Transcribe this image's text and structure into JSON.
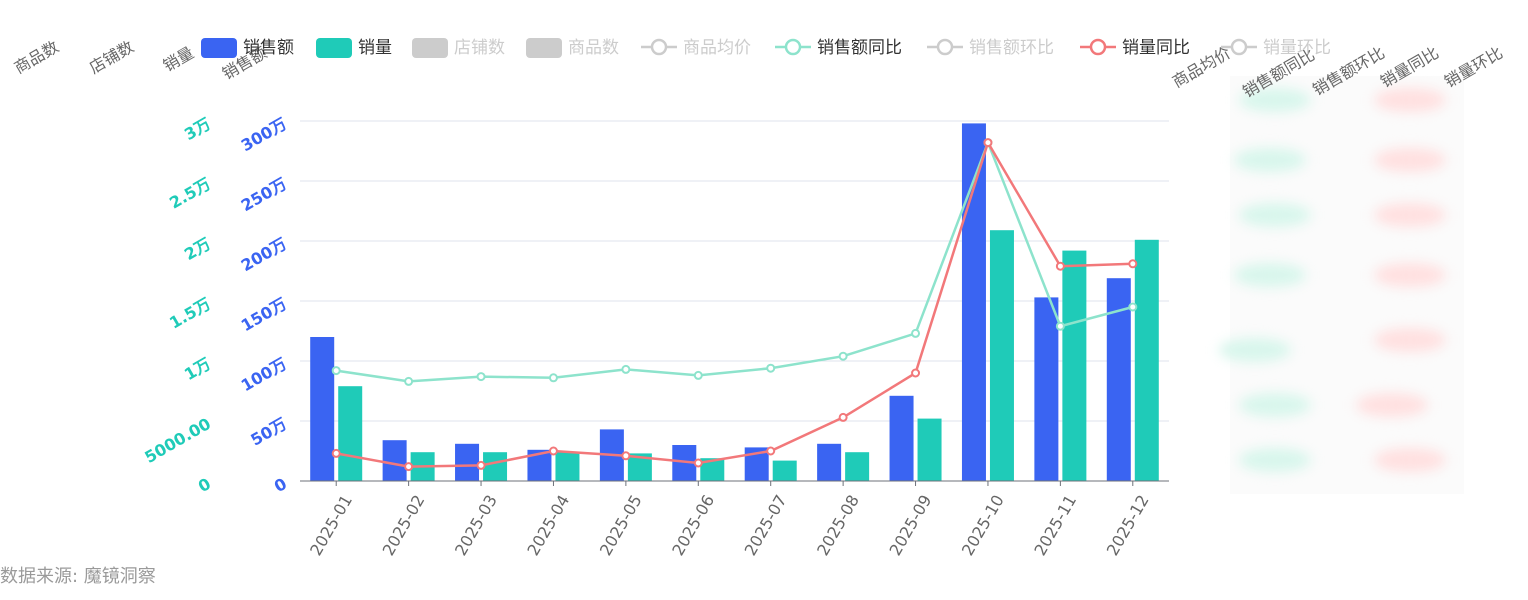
{
  "colors": {
    "sales": "#3a64f2",
    "volume": "#1fcbb8",
    "disabled": "#cccccc",
    "sales_yoy": "#8de3cc",
    "volume_yoy": "#f2787a",
    "grid": "#dfe3ec",
    "axis_left_outer": "#1fcbb8",
    "axis_left_inner": "#3a64f2",
    "tick_text": "#666666",
    "source_text": "#9a9a9a"
  },
  "legend": [
    {
      "label": "销售额",
      "kind": "bar",
      "color": "#3a64f2",
      "active": true
    },
    {
      "label": "销量",
      "kind": "bar",
      "color": "#1fcbb8",
      "active": true
    },
    {
      "label": "店铺数",
      "kind": "bar",
      "color": "#cccccc",
      "active": false
    },
    {
      "label": "商品数",
      "kind": "bar",
      "color": "#cccccc",
      "active": false
    },
    {
      "label": "商品均价",
      "kind": "line",
      "color": "#cccccc",
      "active": false
    },
    {
      "label": "销售额同比",
      "kind": "line",
      "color": "#8de3cc",
      "active": true
    },
    {
      "label": "销售额环比",
      "kind": "line",
      "color": "#cccccc",
      "active": false
    },
    {
      "label": "销量同比",
      "kind": "line",
      "color": "#f2787a",
      "active": true
    },
    {
      "label": "销量环比",
      "kind": "line",
      "color": "#cccccc",
      "active": false
    }
  ],
  "axis_names": {
    "left": [
      "商品数",
      "店铺数",
      "销量",
      "销售额"
    ],
    "right": [
      "商品均价",
      "销售额同比",
      "销售额环比",
      "销量同比",
      "销量环比"
    ]
  },
  "chart_data": {
    "type": "bar",
    "categories": [
      "2025-01",
      "2025-02",
      "2025-03",
      "2025-04",
      "2025-05",
      "2025-06",
      "2025-07",
      "2025-08",
      "2025-09",
      "2025-10",
      "2025-11",
      "2025-12"
    ],
    "series": [
      {
        "name": "销售额",
        "type": "bar",
        "axis": "sales",
        "values": [
          1200000,
          340000,
          310000,
          260000,
          430000,
          300000,
          280000,
          310000,
          710000,
          2980000,
          1530000,
          1690000
        ]
      },
      {
        "name": "销量",
        "type": "bar",
        "axis": "volume",
        "values": [
          7900,
          2400,
          2400,
          2400,
          2300,
          1900,
          1700,
          2400,
          5200,
          20900,
          19200,
          20100
        ]
      },
      {
        "name": "销售额同比",
        "type": "line",
        "values": [
          92,
          83,
          87,
          86,
          93,
          88,
          94,
          104,
          123,
          282,
          129,
          145
        ]
      },
      {
        "name": "销量同比",
        "type": "line",
        "values": [
          23,
          12,
          13,
          25,
          21,
          15,
          25,
          53,
          90,
          282,
          179,
          181
        ]
      }
    ],
    "axes": {
      "sales": {
        "ylim": [
          0,
          3000000
        ],
        "ticks": [
          "0",
          "50万",
          "100万",
          "150万",
          "200万",
          "250万",
          "300万"
        ]
      },
      "volume": {
        "ylim": [
          0,
          30000
        ],
        "ticks": [
          "0",
          "5000.00",
          "1万",
          "1.5万",
          "2万",
          "2.5万",
          "3万"
        ]
      }
    },
    "grid": true,
    "legend_position": "top"
  },
  "source_note": "数据来源: 魔镜洞察"
}
